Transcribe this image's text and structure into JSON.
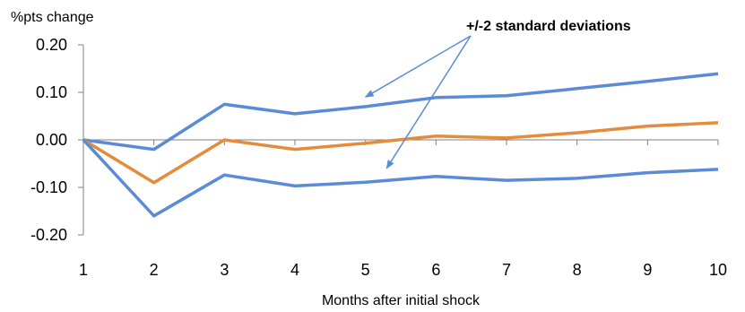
{
  "chart_data": {
    "type": "line",
    "ylabel": "%pts change",
    "xlabel": "Months after initial shock",
    "x": [
      1,
      2,
      3,
      4,
      5,
      6,
      7,
      8,
      9,
      10
    ],
    "x_tick_labels": [
      "1",
      "2",
      "3",
      "4",
      "5",
      "6",
      "7",
      "8",
      "9",
      "10"
    ],
    "y_tick_values": [
      0.2,
      0.1,
      0.0,
      -0.1,
      -0.2
    ],
    "y_tick_labels": [
      "0.20",
      "0.10",
      "0.00",
      "-0.10",
      "-0.20"
    ],
    "ylim": [
      -0.2,
      0.2
    ],
    "grid": false,
    "legend": "none",
    "series": [
      {
        "color": "#5B8BD6",
        "values": [
          0.0,
          -0.02,
          0.075,
          0.055,
          0.07,
          0.089,
          0.093,
          0.108,
          0.123,
          0.139
        ]
      },
      {
        "color": "#E58C3C",
        "values": [
          0.0,
          -0.09,
          0.0,
          -0.02,
          -0.007,
          0.008,
          0.004,
          0.015,
          0.029,
          0.036
        ]
      },
      {
        "color": "#5B8BD6",
        "values": [
          0.0,
          -0.16,
          -0.074,
          -0.097,
          -0.089,
          -0.077,
          -0.085,
          -0.081,
          -0.069,
          -0.062
        ]
      }
    ],
    "annotation": {
      "text": "+/-2 standard deviations",
      "arrow_color": "#5B8BD6",
      "targets": [
        {
          "x": 5,
          "y": 0.09
        },
        {
          "x": 5.3,
          "y": -0.06
        }
      ]
    }
  }
}
